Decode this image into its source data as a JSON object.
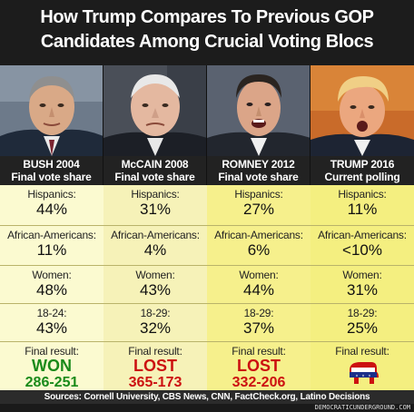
{
  "title": {
    "line1": "How Trump Compares To Previous GOP",
    "line2": "Candidates Among Crucial Voting Blocs"
  },
  "colors": {
    "column_bg": [
      "#fbfad0",
      "#f6f2b8",
      "#f6f08c",
      "#f4ef80"
    ],
    "won": "#1a8a1a",
    "lost": "#cc1111",
    "header_bg": "#1c1c1c"
  },
  "candidates": [
    {
      "photo_icon": "bush-portrait",
      "name": "BUSH 2004",
      "subtitle": "Final vote share",
      "hispanics_label": "Hispanics:",
      "hispanics": "44%",
      "aa_label": "African-Americans:",
      "aa": "11%",
      "women_label": "Women:",
      "women": "48%",
      "age_label": "18-24:",
      "age": "43%",
      "result_label": "Final result:",
      "result": "WON",
      "score": "286-251"
    },
    {
      "photo_icon": "mccain-portrait",
      "name": "McCAIN 2008",
      "subtitle": "Final vote share",
      "hispanics_label": "Hispanics:",
      "hispanics": "31%",
      "aa_label": "African-Americans:",
      "aa": "4%",
      "women_label": "Women:",
      "women": "43%",
      "age_label": "18-29:",
      "age": "32%",
      "result_label": "Final result:",
      "result": "LOST",
      "score": "365-173"
    },
    {
      "photo_icon": "romney-portrait",
      "name": "ROMNEY 2012",
      "subtitle": "Final vote share",
      "hispanics_label": "Hispanics:",
      "hispanics": "27%",
      "aa_label": "African-Americans:",
      "aa": "6%",
      "women_label": "Women:",
      "women": "44%",
      "age_label": "18-29:",
      "age": "37%",
      "result_label": "Final result:",
      "result": "LOST",
      "score": "332-206"
    },
    {
      "photo_icon": "trump-portrait",
      "name": "TRUMP 2016",
      "subtitle": "Current polling",
      "hispanics_label": "Hispanics:",
      "hispanics": "11%",
      "aa_label": "African-Americans:",
      "aa": "<10%",
      "women_label": "Women:",
      "women": "31%",
      "age_label": "18-29:",
      "age": "25%",
      "result_label": "Final result:",
      "result_icon": "gop-elephant-icon"
    }
  ],
  "footer": {
    "sources": "Sources: Cornell University, CBS News, CNN, FactCheck.org, Latino Decisions",
    "credit": "DEMOCRATICUNDERGROUND.COM"
  }
}
